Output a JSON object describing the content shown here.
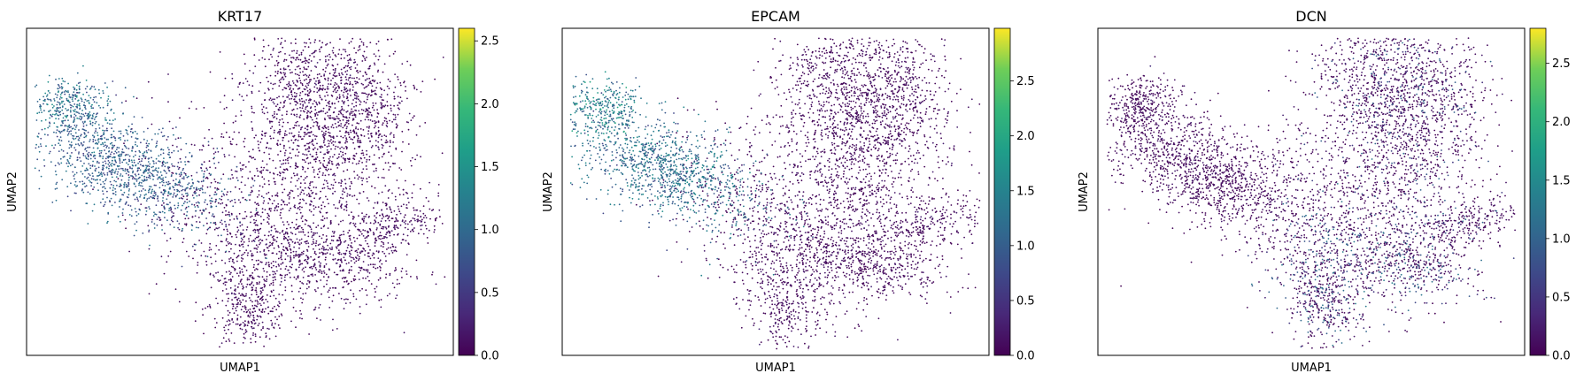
{
  "chart_data": [
    {
      "type": "scatter",
      "title": "KRT17",
      "xlabel": "UMAP1",
      "ylabel": "UMAP2",
      "colormap": "viridis",
      "color_range": [
        0,
        2.6
      ],
      "colorbar_ticks": [
        0.0,
        0.5,
        1.0,
        1.5,
        2.0,
        2.5
      ],
      "colorbar_tick_labels": [
        "0.0",
        "0.5",
        "1.0",
        "1.5",
        "2.0",
        "2.5"
      ],
      "expression_hotspot": "epithelial-arm",
      "hotspot_peak": 1.6
    },
    {
      "type": "scatter",
      "title": "EPCAM",
      "xlabel": "UMAP1",
      "ylabel": "UMAP2",
      "colormap": "viridis",
      "color_range": [
        0,
        2.98
      ],
      "colorbar_ticks": [
        0.0,
        0.5,
        1.0,
        1.5,
        2.0,
        2.5
      ],
      "colorbar_tick_labels": [
        "0.0",
        "0.5",
        "1.0",
        "1.5",
        "2.0",
        "2.5"
      ],
      "expression_hotspot": "epithelial-arm",
      "hotspot_peak": 2.2
    },
    {
      "type": "scatter",
      "title": "DCN",
      "xlabel": "UMAP1",
      "ylabel": "UMAP2",
      "colormap": "viridis",
      "color_range": [
        0,
        2.8
      ],
      "colorbar_ticks": [
        0.0,
        0.5,
        1.0,
        1.5,
        2.0,
        2.5
      ],
      "colorbar_tick_labels": [
        "0.0",
        "0.5",
        "1.0",
        "1.5",
        "2.0",
        "2.5"
      ],
      "expression_hotspot": "stromal-bottom",
      "hotspot_peak": 1.5
    }
  ],
  "colors": {
    "viridis_low": "#440154",
    "viridis_mid": "#21918c",
    "viridis_high": "#fde725"
  }
}
